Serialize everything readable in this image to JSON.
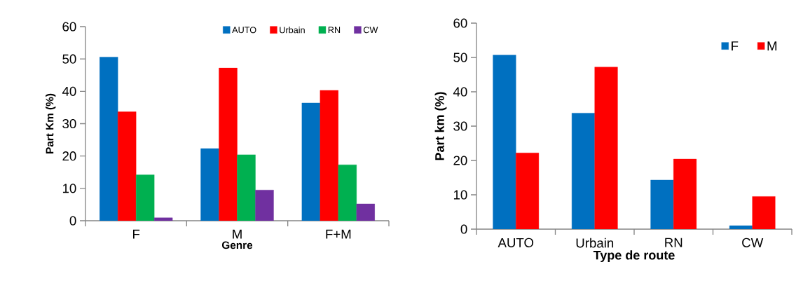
{
  "chart_data": [
    {
      "type": "bar",
      "categories": [
        "F",
        "M",
        "F+M"
      ],
      "xlabel": "Genre",
      "ylabel": "Part Km (%)",
      "ylim": [
        0,
        60
      ],
      "yticks": [
        0,
        10,
        20,
        30,
        40,
        50,
        60
      ],
      "legend": "top",
      "grid": false,
      "series": [
        {
          "name": "AUTO",
          "color": "#0070c0",
          "values": [
            50.6,
            22.3,
            36.4
          ]
        },
        {
          "name": "Urbain",
          "color": "#ff0000",
          "values": [
            33.7,
            47.2,
            40.3
          ]
        },
        {
          "name": "RN",
          "color": "#00b050",
          "values": [
            14.2,
            20.4,
            17.3
          ]
        },
        {
          "name": "CW",
          "color": "#7030a0",
          "values": [
            0.9,
            9.5,
            5.2
          ]
        }
      ]
    },
    {
      "type": "bar",
      "categories": [
        "AUTO",
        "Urbain",
        "RN",
        "CW"
      ],
      "xlabel": "Type de route",
      "ylabel": "Part km (%)",
      "ylim": [
        0,
        60
      ],
      "yticks": [
        0,
        10,
        20,
        30,
        40,
        50,
        60
      ],
      "legend": "top right",
      "grid": false,
      "series": [
        {
          "name": "F",
          "color": "#0070c0",
          "values": [
            50.7,
            33.8,
            14.3,
            1.0
          ]
        },
        {
          "name": "M",
          "color": "#ff0000",
          "values": [
            22.2,
            47.2,
            20.4,
            9.5
          ]
        }
      ]
    }
  ]
}
